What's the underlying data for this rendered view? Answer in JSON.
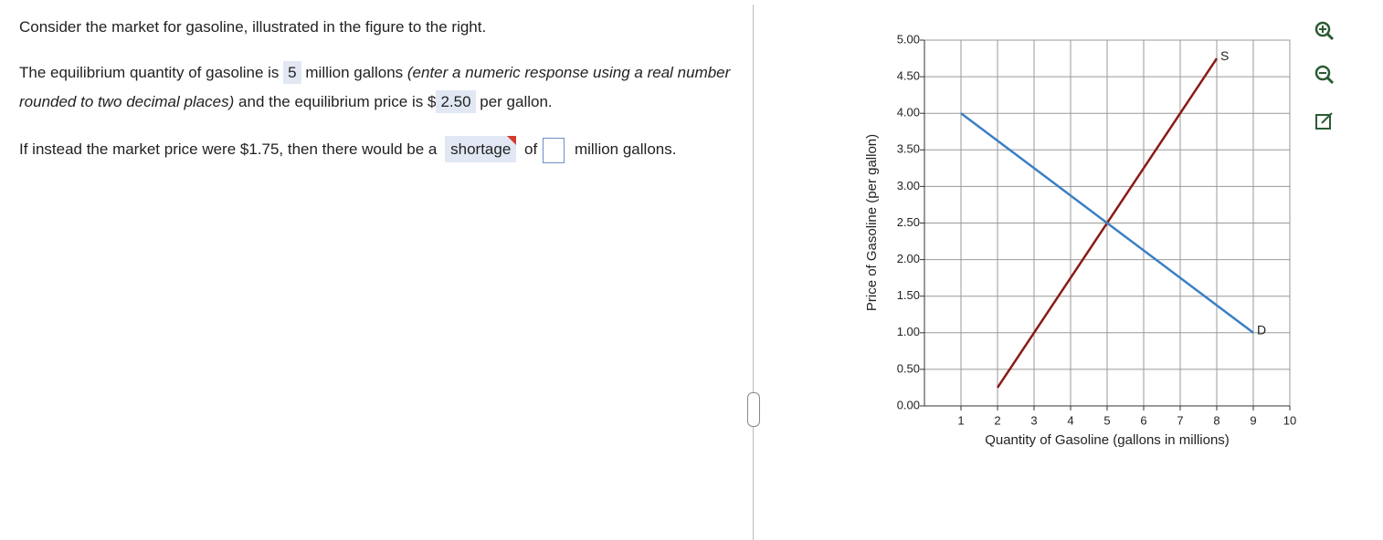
{
  "question": {
    "intro": "Consider the market for gasoline, illustrated in the figure to the right.",
    "part1": {
      "before": "The equilibrium quantity of gasoline is",
      "answer_quantity": "5",
      "middle": "million gallons",
      "hint": "(enter a numeric response using a real number rounded to two decimal places)",
      "price_text": "and the equilibrium price is $",
      "answer_price": "2.50",
      "after": "per gallon."
    },
    "part2": {
      "before": "If instead the market price were $1.75, then there would be a",
      "answer_choice": "shortage",
      "middle": "of",
      "after": "million gallons."
    }
  },
  "chart_data": {
    "type": "line",
    "x_label": "Quantity of Gasoline (gallons in millions)",
    "y_label": "Price of Gasoline (per gallon)",
    "xlim": [
      0,
      10
    ],
    "xticks": [
      1,
      2,
      3,
      4,
      5,
      6,
      7,
      8,
      9,
      10
    ],
    "ylim": [
      0,
      5
    ],
    "yticks": [
      {
        "value": 0,
        "label": "0.00"
      },
      {
        "value": 0.5,
        "label": "0.50"
      },
      {
        "value": 1,
        "label": "1.00"
      },
      {
        "value": 1.5,
        "label": "1.50"
      },
      {
        "value": 2,
        "label": "2.00"
      },
      {
        "value": 2.5,
        "label": "2.50"
      },
      {
        "value": 3,
        "label": "3.00"
      },
      {
        "value": 3.5,
        "label": "3.50"
      },
      {
        "value": 4,
        "label": "4.00"
      },
      {
        "value": 4.5,
        "label": "4.50"
      },
      {
        "value": 5,
        "label": "5.00"
      }
    ],
    "grid": true,
    "series": [
      {
        "name": "S",
        "color": "#8b1a12",
        "x": [
          2,
          8
        ],
        "values": [
          0.25,
          4.75
        ]
      },
      {
        "name": "D",
        "color": "#3b7fc4",
        "x": [
          1,
          9
        ],
        "values": [
          4,
          1
        ]
      }
    ]
  }
}
